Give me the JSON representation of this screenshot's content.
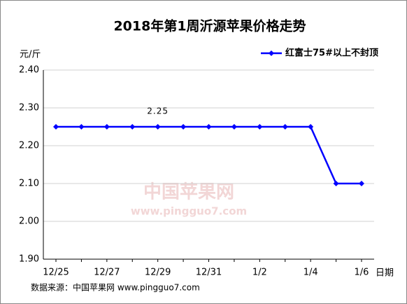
{
  "chart_data": {
    "type": "line",
    "title": "2018年第1周沂源苹果价格走势",
    "ylabel": "元/斤",
    "xlabel": "日期",
    "categories": [
      "12/25",
      null,
      "12/27",
      null,
      "12/29",
      null,
      "12/31",
      null,
      "1/2",
      null,
      "1/4",
      null,
      "1/6"
    ],
    "series": [
      {
        "name": "红富士75#以上不封顶",
        "color": "#0000ff",
        "values": [
          2.25,
          2.25,
          2.25,
          2.25,
          2.25,
          2.25,
          2.25,
          2.25,
          2.25,
          2.25,
          2.25,
          2.1,
          2.1
        ]
      }
    ],
    "ylim": [
      1.9,
      2.4
    ],
    "yticks": [
      {
        "value": 1.9,
        "label": "1.90"
      },
      {
        "value": 2.0,
        "label": "2.00"
      },
      {
        "value": 2.1,
        "label": "2.10"
      },
      {
        "value": 2.2,
        "label": "2.20"
      },
      {
        "value": 2.3,
        "label": "2.30"
      },
      {
        "value": 2.4,
        "label": "2.40"
      }
    ],
    "grid": true,
    "legend": "top-right",
    "annotation": "2.25",
    "watermark": [
      "中国苹果网",
      "www.pingguo7.com"
    ],
    "source": "数据来源：中国苹果网 www.pingguo7.com"
  }
}
